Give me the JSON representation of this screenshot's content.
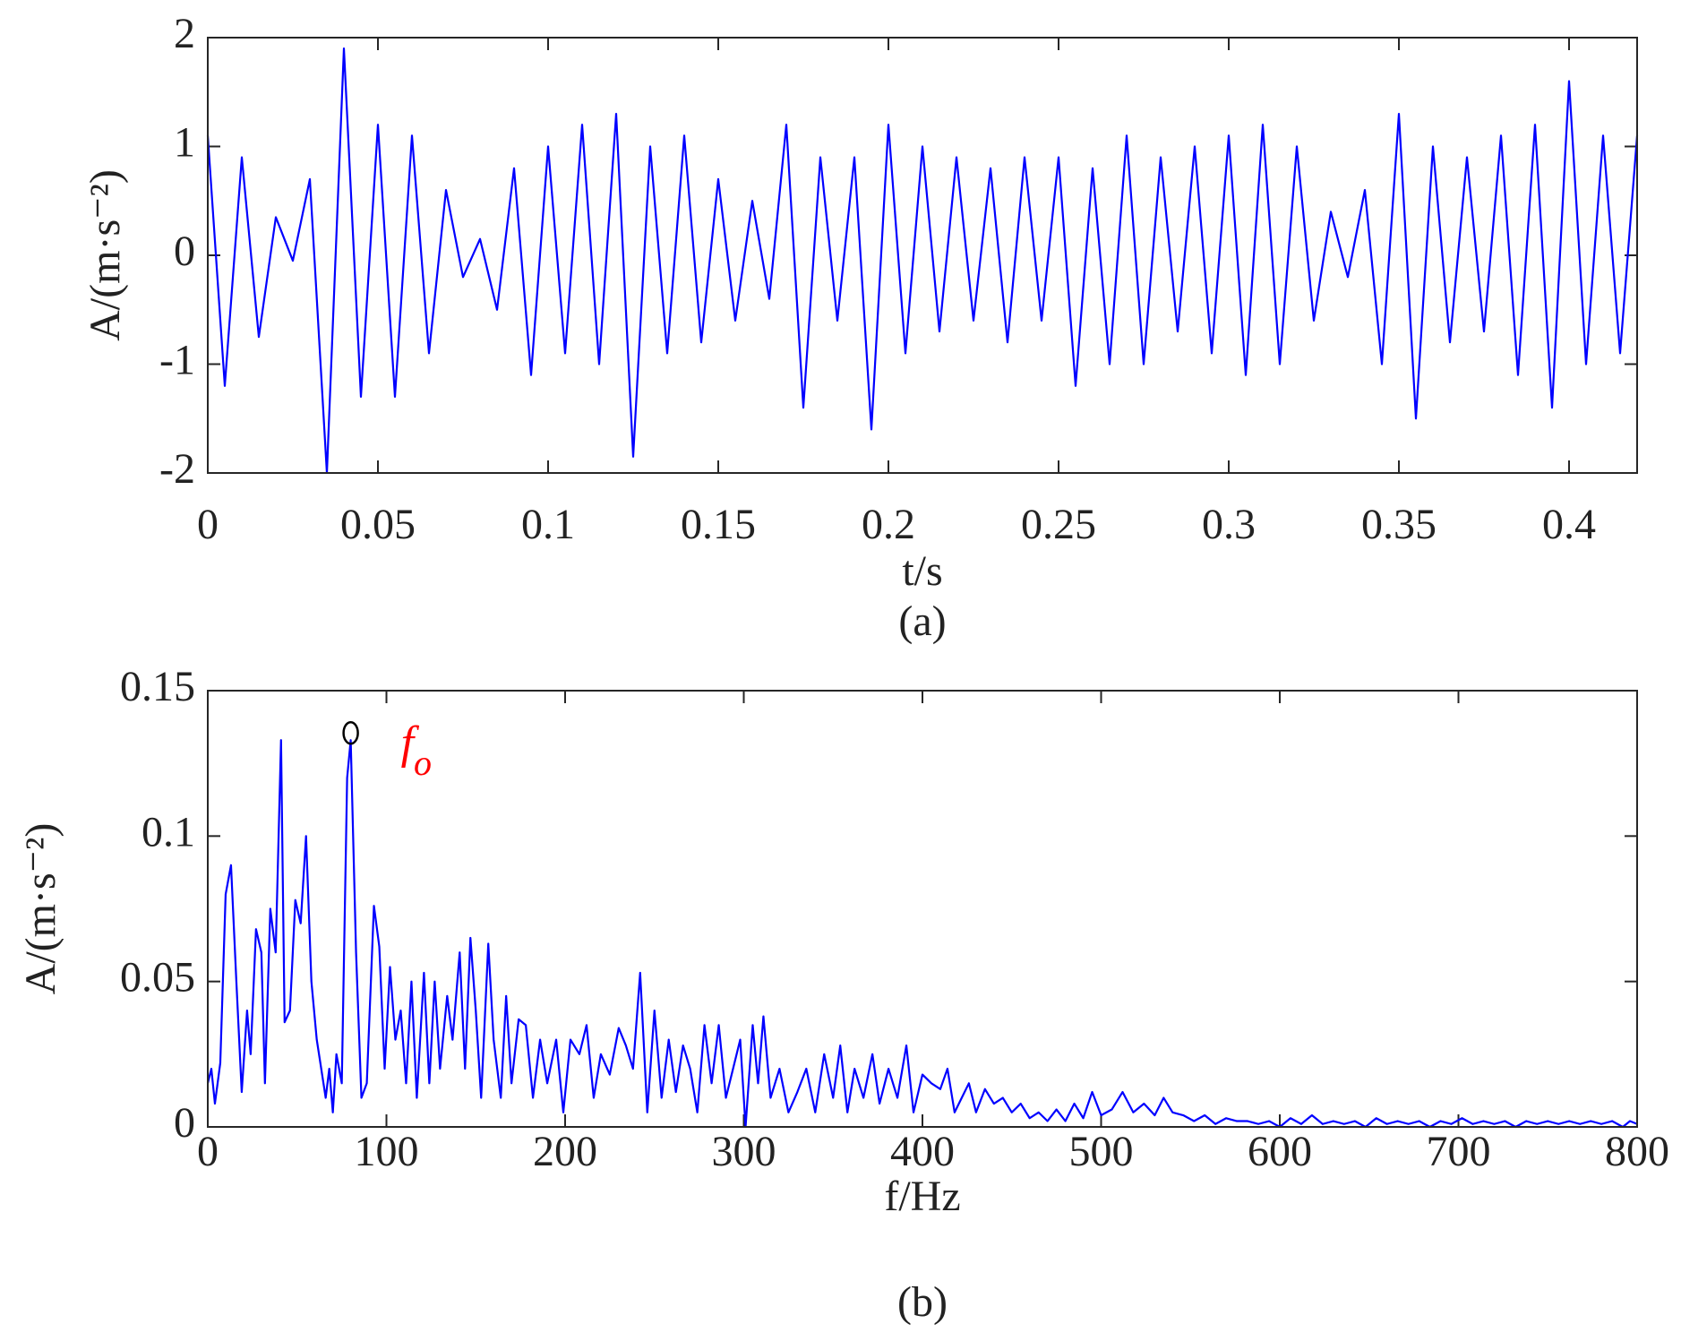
{
  "chart_data": [
    {
      "type": "line",
      "xlabel": "t/s",
      "ylabel": "A/(m·s⁻²)",
      "caption": "(a)",
      "xlim": [
        0,
        0.42
      ],
      "ylim": [
        -2,
        2
      ],
      "xticks": [
        0,
        0.05,
        0.1,
        0.15,
        0.2,
        0.25,
        0.3,
        0.35,
        0.4
      ],
      "yticks": [
        -2,
        -1,
        0,
        1,
        2
      ],
      "series": [
        {
          "color": "#0000ff",
          "x": [
            0,
            0.005,
            0.01,
            0.015,
            0.02,
            0.025,
            0.03,
            0.035,
            0.04,
            0.045,
            0.05,
            0.055,
            0.06,
            0.065,
            0.07,
            0.075,
            0.08,
            0.085,
            0.09,
            0.095,
            0.1,
            0.105,
            0.11,
            0.115,
            0.12,
            0.125,
            0.13,
            0.135,
            0.14,
            0.145,
            0.15,
            0.155,
            0.16,
            0.165,
            0.17,
            0.175,
            0.18,
            0.185,
            0.19,
            0.195,
            0.2,
            0.205,
            0.21,
            0.215,
            0.22,
            0.225,
            0.23,
            0.235,
            0.24,
            0.245,
            0.25,
            0.255,
            0.26,
            0.265,
            0.27,
            0.275,
            0.28,
            0.285,
            0.29,
            0.295,
            0.3,
            0.305,
            0.31,
            0.315,
            0.32,
            0.325,
            0.33,
            0.335,
            0.34,
            0.345,
            0.35,
            0.355,
            0.36,
            0.365,
            0.37,
            0.375,
            0.38,
            0.385,
            0.39,
            0.395,
            0.4,
            0.405,
            0.41,
            0.415,
            0.42
          ],
          "values": [
            1.1,
            -1.2,
            0.9,
            -0.75,
            0.35,
            -0.05,
            0.7,
            -2.0,
            1.9,
            -1.3,
            1.2,
            -1.3,
            1.1,
            -0.9,
            0.6,
            -0.2,
            0.15,
            -0.5,
            0.8,
            -1.1,
            1.0,
            -0.9,
            1.2,
            -1.0,
            1.3,
            -1.85,
            1.0,
            -0.9,
            1.1,
            -0.8,
            0.7,
            -0.6,
            0.5,
            -0.4,
            1.2,
            -1.4,
            0.9,
            -0.6,
            0.9,
            -1.6,
            1.2,
            -0.9,
            1.0,
            -0.7,
            0.9,
            -0.6,
            0.8,
            -0.8,
            0.9,
            -0.6,
            0.9,
            -1.2,
            0.8,
            -1.0,
            1.1,
            -1.0,
            0.9,
            -0.7,
            1.0,
            -0.9,
            1.1,
            -1.1,
            1.2,
            -1.0,
            1.0,
            -0.6,
            0.4,
            -0.2,
            0.6,
            -1.0,
            1.3,
            -1.5,
            1.0,
            -0.8,
            0.9,
            -0.7,
            1.1,
            -1.1,
            1.2,
            -1.4,
            1.6,
            -1.0,
            1.1,
            -0.9,
            1.1
          ]
        }
      ]
    },
    {
      "type": "line",
      "xlabel": "f/Hz",
      "ylabel": "A/(m·s⁻²)",
      "caption": "(b)",
      "xlim": [
        0,
        800
      ],
      "ylim": [
        0,
        0.15
      ],
      "xticks": [
        0,
        100,
        200,
        300,
        400,
        500,
        600,
        700,
        800
      ],
      "yticks": [
        0,
        0.05,
        0.1,
        0.15
      ],
      "series": [
        {
          "color": "#0000ff",
          "x": [
            0,
            2,
            4,
            7,
            10,
            13,
            16,
            19,
            22,
            24,
            27,
            30,
            32,
            35,
            38,
            41,
            43,
            46,
            49,
            52,
            55,
            58,
            61,
            63,
            66,
            68,
            70,
            72,
            75,
            78,
            80,
            83,
            86,
            89,
            93,
            96,
            99,
            102,
            105,
            108,
            111,
            114,
            117,
            121,
            124,
            127,
            130,
            134,
            137,
            141,
            144,
            147,
            150,
            153,
            157,
            160,
            164,
            167,
            170,
            174,
            178,
            182,
            186,
            190,
            195,
            199,
            203,
            208,
            212,
            216,
            220,
            225,
            230,
            234,
            238,
            242,
            246,
            250,
            254,
            258,
            262,
            266,
            270,
            274,
            278,
            282,
            286,
            290,
            294,
            298,
            301,
            305,
            308,
            311,
            315,
            320,
            325,
            330,
            335,
            340,
            345,
            350,
            354,
            358,
            362,
            367,
            372,
            376,
            381,
            386,
            391,
            395,
            400,
            405,
            410,
            414,
            418,
            422,
            426,
            430,
            435,
            440,
            445,
            450,
            455,
            460,
            465,
            470,
            475,
            480,
            485,
            490,
            495,
            500,
            506,
            512,
            518,
            524,
            530,
            535,
            540,
            546,
            552,
            558,
            564,
            570,
            576,
            582,
            588,
            594,
            600,
            606,
            612,
            618,
            624,
            630,
            636,
            642,
            648,
            654,
            660,
            666,
            672,
            678,
            684,
            690,
            696,
            702,
            708,
            714,
            720,
            726,
            732,
            738,
            744,
            750,
            756,
            762,
            768,
            774,
            780,
            786,
            792,
            796,
            800
          ],
          "values": [
            0.015,
            0.02,
            0.008,
            0.022,
            0.08,
            0.09,
            0.05,
            0.012,
            0.04,
            0.025,
            0.068,
            0.06,
            0.015,
            0.075,
            0.06,
            0.133,
            0.036,
            0.04,
            0.078,
            0.07,
            0.1,
            0.05,
            0.03,
            0.022,
            0.01,
            0.02,
            0.005,
            0.025,
            0.015,
            0.12,
            0.133,
            0.06,
            0.01,
            0.015,
            0.076,
            0.062,
            0.02,
            0.055,
            0.03,
            0.04,
            0.015,
            0.05,
            0.01,
            0.053,
            0.015,
            0.05,
            0.02,
            0.045,
            0.03,
            0.06,
            0.02,
            0.065,
            0.04,
            0.01,
            0.063,
            0.03,
            0.01,
            0.045,
            0.015,
            0.037,
            0.035,
            0.01,
            0.03,
            0.015,
            0.03,
            0.005,
            0.03,
            0.025,
            0.035,
            0.01,
            0.025,
            0.018,
            0.034,
            0.028,
            0.02,
            0.053,
            0.005,
            0.04,
            0.01,
            0.03,
            0.012,
            0.028,
            0.02,
            0.005,
            0.035,
            0.015,
            0.035,
            0.01,
            0.02,
            0.03,
            0,
            0.035,
            0.015,
            0.038,
            0.01,
            0.02,
            0.005,
            0.012,
            0.02,
            0.005,
            0.025,
            0.01,
            0.028,
            0.005,
            0.02,
            0.01,
            0.025,
            0.008,
            0.02,
            0.01,
            0.028,
            0.005,
            0.018,
            0.015,
            0.013,
            0.02,
            0.005,
            0.01,
            0.015,
            0.005,
            0.013,
            0.008,
            0.01,
            0.005,
            0.008,
            0.003,
            0.005,
            0.002,
            0.006,
            0.002,
            0.008,
            0.003,
            0.012,
            0.004,
            0.006,
            0.012,
            0.005,
            0.008,
            0.004,
            0.01,
            0.005,
            0.004,
            0.002,
            0.004,
            0.001,
            0.003,
            0.002,
            0.002,
            0.001,
            0.002,
            0,
            0.003,
            0.001,
            0.004,
            0.001,
            0.002,
            0.001,
            0.002,
            0,
            0.003,
            0.001,
            0.002,
            0.001,
            0.002,
            0,
            0.002,
            0.001,
            0.003,
            0.001,
            0.002,
            0.001,
            0.002,
            0,
            0.002,
            0.001,
            0.002,
            0.001,
            0.002,
            0.001,
            0.002,
            0.001,
            0.002,
            0,
            0.002,
            0.001
          ]
        }
      ],
      "marker": {
        "x": 80,
        "y": 0.133,
        "color": "#000000"
      },
      "annotation": {
        "text": "f",
        "subscript": "o",
        "color": "#ff0000"
      }
    }
  ]
}
